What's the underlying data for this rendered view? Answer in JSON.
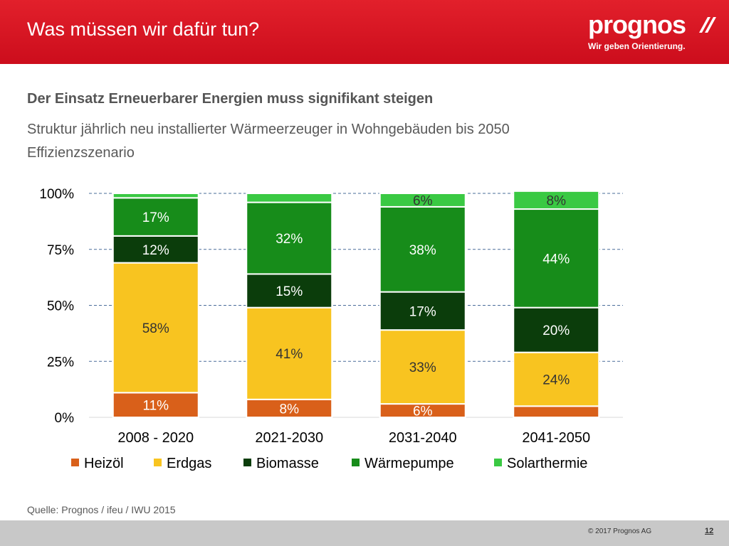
{
  "header": {
    "title": "Was müssen wir dafür tun?",
    "logo_text": "prognos",
    "logo_tagline": "Wir geben Orientierung."
  },
  "content": {
    "subtitle": "Der Einsatz Erneuerbarer Energien muss signifikant steigen",
    "description_line1": "Struktur jährlich neu installierter Wärmeerzeuger in Wohngebäuden bis 2050",
    "description_line2": "Effizienzszenario",
    "source": "Quelle: Prognos / ifeu / IWU 2015"
  },
  "footer": {
    "copyright": "© 2017 Prognos AG",
    "page_number": "12"
  },
  "colors": {
    "header_red": "#d51522",
    "heizoel": "#d9601a",
    "erdgas": "#f8c420",
    "biomasse": "#0b3d0b",
    "waermepumpe": "#178c1a",
    "solarthermie": "#3ac943"
  },
  "chart_data": {
    "type": "bar",
    "stacked": true,
    "title": "",
    "xlabel": "",
    "ylabel": "",
    "ylim": [
      0,
      100
    ],
    "yticks": [
      "0%",
      "25%",
      "50%",
      "75%",
      "100%"
    ],
    "grid": true,
    "legend_position": "bottom",
    "categories": [
      "2008 - 2020",
      "2021-2030",
      "2031-2040",
      "2041-2050"
    ],
    "series": [
      {
        "name": "Heizöl",
        "color": "#d9601a",
        "values": [
          11,
          8,
          6,
          5
        ],
        "labels": [
          "11%",
          "8%",
          "6%",
          ""
        ]
      },
      {
        "name": "Erdgas",
        "color": "#f8c420",
        "values": [
          58,
          41,
          33,
          24
        ],
        "labels": [
          "58%",
          "41%",
          "33%",
          "24%"
        ]
      },
      {
        "name": "Biomasse",
        "color": "#0b3d0b",
        "values": [
          12,
          15,
          17,
          20
        ],
        "labels": [
          "12%",
          "15%",
          "17%",
          "20%"
        ]
      },
      {
        "name": "Wärmepumpe",
        "color": "#178c1a",
        "values": [
          17,
          32,
          38,
          44
        ],
        "labels": [
          "17%",
          "32%",
          "38%",
          "44%"
        ]
      },
      {
        "name": "Solarthermie",
        "color": "#3ac943",
        "values": [
          2,
          4,
          6,
          8
        ],
        "labels": [
          "",
          "",
          "6%",
          "8%"
        ]
      }
    ]
  }
}
